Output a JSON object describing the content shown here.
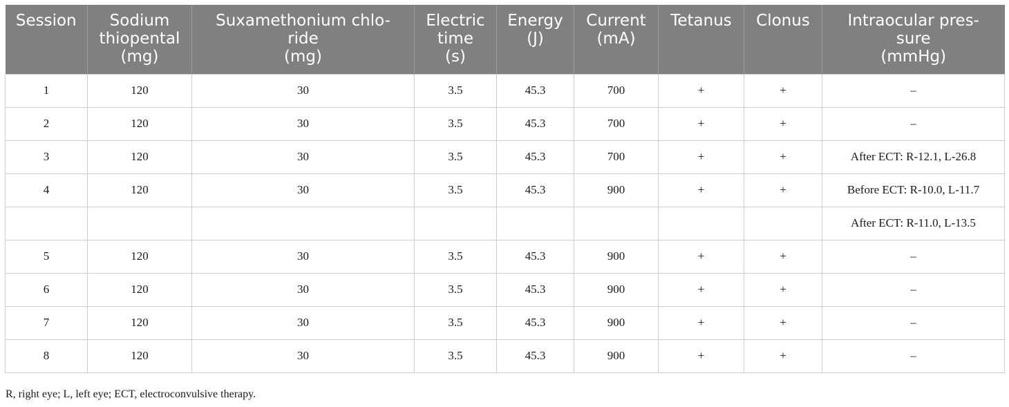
{
  "table": {
    "headers": [
      [
        "Session"
      ],
      [
        "Sodium",
        "thiopental",
        "(mg)"
      ],
      [
        "Suxamethonium chlo-",
        "ride",
        "(mg)"
      ],
      [
        "Electric",
        "time",
        "(s)"
      ],
      [
        "Energy",
        "(J)"
      ],
      [
        "Current",
        "(mA)"
      ],
      [
        "Tetanus"
      ],
      [
        "Clonus"
      ],
      [
        "Intraocular pres-",
        "sure",
        "(mmHg)"
      ]
    ],
    "rows": [
      [
        "1",
        "120",
        "30",
        "3.5",
        "45.3",
        "700",
        "+",
        "+",
        "–"
      ],
      [
        "2",
        "120",
        "30",
        "3.5",
        "45.3",
        "700",
        "+",
        "+",
        "–"
      ],
      [
        "3",
        "120",
        "30",
        "3.5",
        "45.3",
        "700",
        "+",
        "+",
        "After ECT: R-12.1, L-26.8"
      ],
      [
        "4",
        "120",
        "30",
        "3.5",
        "45.3",
        "900",
        "+",
        "+",
        "Before ECT: R-10.0, L-11.7"
      ],
      [
        "",
        "",
        "",
        "",
        "",
        "",
        "",
        "",
        "After ECT: R-11.0, L-13.5"
      ],
      [
        "5",
        "120",
        "30",
        "3.5",
        "45.3",
        "900",
        "+",
        "+",
        "–"
      ],
      [
        "6",
        "120",
        "30",
        "3.5",
        "45.3",
        "900",
        "+",
        "+",
        "–"
      ],
      [
        "7",
        "120",
        "30",
        "3.5",
        "45.3",
        "900",
        "+",
        "+",
        "–"
      ],
      [
        "8",
        "120",
        "30",
        "3.5",
        "45.3",
        "900",
        "+",
        "+",
        "–"
      ]
    ]
  },
  "footnote": "R, right eye; L, left eye; ECT, electroconvulsive therapy."
}
